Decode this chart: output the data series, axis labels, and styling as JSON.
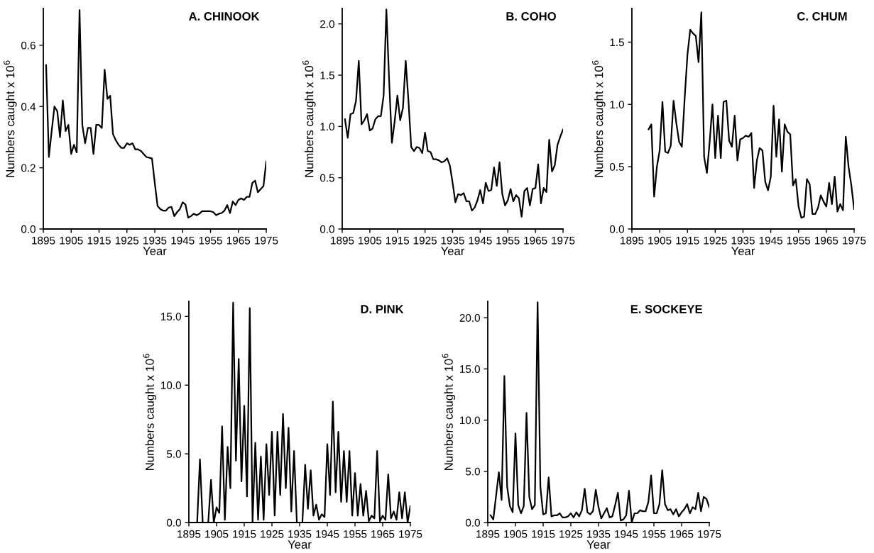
{
  "chart_data": [
    {
      "type": "line",
      "title": "A. CHINOOK",
      "xlabel": "Year",
      "ylabel": "Numbers caught x 10$^{6}$",
      "xlim": [
        1895,
        1975
      ],
      "xticks": [
        1895,
        1905,
        1915,
        1925,
        1935,
        1945,
        1955,
        1965,
        1975
      ],
      "ylim": [
        0,
        0.72
      ],
      "yticks": [
        {
          "value": 0,
          "label": "0.0"
        },
        0.2,
        0.4,
        0.6
      ],
      "grid": false,
      "legend": false,
      "x": [
        1896,
        1897,
        1898,
        1899,
        1900,
        1901,
        1902,
        1903,
        1904,
        1905,
        1906,
        1907,
        1908,
        1909,
        1910,
        1911,
        1912,
        1913,
        1914,
        1915,
        1916,
        1917,
        1918,
        1919,
        1920,
        1921,
        1922,
        1923,
        1924,
        1925,
        1926,
        1927,
        1928,
        1929,
        1930,
        1931,
        1932,
        1933,
        1934,
        1935,
        1936,
        1937,
        1938,
        1939,
        1940,
        1941,
        1942,
        1943,
        1944,
        1945,
        1946,
        1947,
        1948,
        1949,
        1950,
        1951,
        1952,
        1953,
        1954,
        1955,
        1956,
        1957,
        1958,
        1959,
        1960,
        1961,
        1962,
        1963,
        1964,
        1965,
        1966,
        1967,
        1968,
        1969,
        1970,
        1971,
        1972,
        1973,
        1974,
        1975
      ],
      "series": [
        {
          "color": "#000000",
          "values": [
            0.535,
            0.235,
            0.32,
            0.4,
            0.385,
            0.3,
            0.42,
            0.32,
            0.34,
            0.245,
            0.275,
            0.25,
            0.715,
            0.34,
            0.28,
            0.33,
            0.33,
            0.245,
            0.34,
            0.34,
            0.33,
            0.52,
            0.425,
            0.435,
            0.31,
            0.29,
            0.275,
            0.265,
            0.265,
            0.28,
            0.275,
            0.28,
            0.26,
            0.26,
            0.255,
            0.245,
            0.235,
            0.233,
            0.23,
            0.15,
            0.075,
            0.065,
            0.06,
            0.06,
            0.07,
            0.072,
            0.042,
            0.055,
            0.065,
            0.087,
            0.08,
            0.037,
            0.042,
            0.05,
            0.045,
            0.05,
            0.058,
            0.058,
            0.058,
            0.058,
            0.055,
            0.045,
            0.05,
            0.052,
            0.06,
            0.078,
            0.052,
            0.09,
            0.078,
            0.095,
            0.1,
            0.095,
            0.105,
            0.105,
            0.15,
            0.158,
            0.12,
            0.13,
            0.14,
            0.22
          ]
        }
      ]
    },
    {
      "type": "line",
      "title": "B. COHO",
      "xlabel": "Year",
      "ylabel": "Numbers caught x 10$^{6}$",
      "xlim": [
        1895,
        1975
      ],
      "xticks": [
        1895,
        1905,
        1915,
        1925,
        1935,
        1945,
        1955,
        1965,
        1975
      ],
      "ylim": [
        0,
        2.15
      ],
      "yticks": [
        {
          "value": 0,
          "label": "0.0"
        },
        0.5,
        {
          "value": 1,
          "label": "1.0"
        },
        1.5,
        {
          "value": 2,
          "label": "2.0"
        }
      ],
      "grid": false,
      "legend": false,
      "x": [
        1896,
        1897,
        1898,
        1899,
        1900,
        1901,
        1902,
        1903,
        1904,
        1905,
        1906,
        1907,
        1908,
        1909,
        1910,
        1911,
        1912,
        1913,
        1914,
        1915,
        1916,
        1917,
        1918,
        1919,
        1920,
        1921,
        1922,
        1923,
        1924,
        1925,
        1926,
        1927,
        1928,
        1929,
        1930,
        1931,
        1932,
        1933,
        1934,
        1935,
        1936,
        1937,
        1938,
        1939,
        1940,
        1941,
        1942,
        1943,
        1944,
        1945,
        1946,
        1947,
        1948,
        1949,
        1950,
        1951,
        1952,
        1953,
        1954,
        1955,
        1956,
        1957,
        1958,
        1959,
        1960,
        1961,
        1962,
        1963,
        1964,
        1965,
        1966,
        1967,
        1968,
        1969,
        1970,
        1971,
        1972,
        1973,
        1974,
        1975
      ],
      "series": [
        {
          "color": "#000000",
          "values": [
            1.07,
            0.89,
            1.12,
            1.13,
            1.25,
            1.64,
            1.02,
            1.06,
            1.12,
            0.96,
            0.98,
            1.07,
            1.1,
            1.1,
            1.3,
            2.14,
            1.45,
            0.84,
            1.05,
            1.3,
            1.06,
            1.18,
            1.64,
            1.25,
            0.8,
            0.76,
            0.8,
            0.79,
            0.74,
            0.94,
            0.76,
            0.75,
            0.68,
            0.68,
            0.67,
            0.65,
            0.66,
            0.69,
            0.62,
            0.45,
            0.26,
            0.34,
            0.33,
            0.35,
            0.27,
            0.27,
            0.18,
            0.21,
            0.28,
            0.38,
            0.25,
            0.45,
            0.37,
            0.38,
            0.6,
            0.42,
            0.65,
            0.34,
            0.23,
            0.28,
            0.39,
            0.27,
            0.33,
            0.3,
            0.12,
            0.37,
            0.4,
            0.23,
            0.39,
            0.4,
            0.63,
            0.25,
            0.4,
            0.36,
            0.87,
            0.56,
            0.62,
            0.82,
            0.9,
            0.97
          ]
        }
      ]
    },
    {
      "type": "line",
      "title": "C. CHUM",
      "xlabel": "Year",
      "ylabel": "Numbers caught x 10$^{6}$",
      "xlim": [
        1895,
        1975
      ],
      "xticks": [
        1895,
        1905,
        1915,
        1925,
        1935,
        1945,
        1955,
        1965,
        1975
      ],
      "ylim": [
        0,
        1.77
      ],
      "yticks": [
        {
          "value": 0,
          "label": "0.0"
        },
        0.5,
        {
          "value": 1,
          "label": "1.0"
        },
        1.5
      ],
      "grid": false,
      "legend": false,
      "x": [
        1901,
        1902,
        1903,
        1904,
        1905,
        1906,
        1907,
        1908,
        1909,
        1910,
        1911,
        1912,
        1913,
        1914,
        1915,
        1916,
        1917,
        1918,
        1919,
        1920,
        1921,
        1922,
        1923,
        1924,
        1925,
        1926,
        1927,
        1928,
        1929,
        1930,
        1931,
        1932,
        1933,
        1934,
        1935,
        1936,
        1937,
        1938,
        1939,
        1940,
        1941,
        1942,
        1943,
        1944,
        1945,
        1946,
        1947,
        1948,
        1949,
        1950,
        1951,
        1952,
        1953,
        1954,
        1955,
        1956,
        1957,
        1958,
        1959,
        1960,
        1961,
        1962,
        1963,
        1964,
        1965,
        1966,
        1967,
        1968,
        1969,
        1970,
        1971,
        1972,
        1973,
        1974,
        1975
      ],
      "series": [
        {
          "color": "#000000",
          "values": [
            0.8,
            0.84,
            0.26,
            0.5,
            0.63,
            1.02,
            0.62,
            0.61,
            0.67,
            1.03,
            0.85,
            0.7,
            0.66,
            1.05,
            1.4,
            1.6,
            1.57,
            1.55,
            1.34,
            1.74,
            0.58,
            0.45,
            0.7,
            1.0,
            0.57,
            0.91,
            0.57,
            1.02,
            1.03,
            0.71,
            0.66,
            0.91,
            0.55,
            0.72,
            0.73,
            0.75,
            0.74,
            0.77,
            0.33,
            0.55,
            0.65,
            0.63,
            0.38,
            0.31,
            0.42,
            0.99,
            0.58,
            0.88,
            0.46,
            0.84,
            0.78,
            0.76,
            0.35,
            0.4,
            0.18,
            0.09,
            0.1,
            0.4,
            0.36,
            0.12,
            0.12,
            0.17,
            0.27,
            0.22,
            0.18,
            0.37,
            0.2,
            0.42,
            0.14,
            0.2,
            0.15,
            0.74,
            0.5,
            0.35,
            0.16
          ]
        }
      ]
    },
    {
      "type": "line",
      "title": "D. PINK",
      "xlabel": "Year",
      "ylabel": "Numbers caught x 10$^{6}$",
      "xlim": [
        1895,
        1975
      ],
      "xticks": [
        1895,
        1905,
        1915,
        1925,
        1935,
        1945,
        1955,
        1965,
        1975
      ],
      "ylim": [
        0,
        16.1
      ],
      "yticks": [
        {
          "value": 0,
          "label": "0.0"
        },
        {
          "value": 5,
          "label": "5.0"
        },
        {
          "value": 10,
          "label": "10.0"
        },
        {
          "value": 15,
          "label": "15.0"
        }
      ],
      "grid": false,
      "legend": false,
      "x": [
        1898,
        1899,
        1900,
        1901,
        1902,
        1903,
        1904,
        1905,
        1906,
        1907,
        1908,
        1909,
        1910,
        1911,
        1912,
        1913,
        1914,
        1915,
        1916,
        1917,
        1918,
        1919,
        1920,
        1921,
        1922,
        1923,
        1924,
        1925,
        1926,
        1927,
        1928,
        1929,
        1930,
        1931,
        1932,
        1933,
        1934,
        1935,
        1936,
        1937,
        1938,
        1939,
        1940,
        1941,
        1942,
        1943,
        1944,
        1945,
        1946,
        1947,
        1948,
        1949,
        1950,
        1951,
        1952,
        1953,
        1954,
        1955,
        1956,
        1957,
        1958,
        1959,
        1960,
        1961,
        1962,
        1963,
        1964,
        1965,
        1966,
        1967,
        1968,
        1969,
        1970,
        1971,
        1972,
        1973,
        1974,
        1975
      ],
      "series": [
        {
          "color": "#000000",
          "values": [
            0,
            4.6,
            0,
            0,
            0,
            3.1,
            0,
            1.1,
            0.7,
            7.0,
            0.2,
            5.5,
            2.5,
            16.0,
            4.5,
            11.9,
            3.0,
            8.5,
            1.9,
            15.6,
            0,
            5.8,
            0.2,
            4.8,
            0.2,
            5.7,
            2.0,
            6.6,
            0.5,
            6.6,
            2.0,
            7.9,
            2.5,
            6.9,
            0.8,
            5.2,
            0,
            0,
            0,
            4.2,
            1.0,
            3.8,
            0.5,
            1.3,
            0.2,
            0.6,
            0.4,
            5.7,
            2.0,
            8.8,
            2.2,
            6.6,
            1.5,
            5.2,
            1.5,
            5.2,
            0.5,
            3.6,
            0.5,
            2.8,
            0.5,
            2.3,
            0.1,
            0.5,
            0.3,
            5.2,
            0.1,
            0.5,
            0.2,
            3.5,
            0.3,
            0.8,
            0.2,
            2.2,
            0.3,
            2.2,
            0,
            1.2
          ]
        }
      ]
    },
    {
      "type": "line",
      "title": "E. SOCKEYE",
      "xlabel": "Year",
      "ylabel": "Numbers caught x 10$^{6}$",
      "xlim": [
        1895,
        1975
      ],
      "xticks": [
        1895,
        1905,
        1915,
        1925,
        1935,
        1945,
        1955,
        1965,
        1975
      ],
      "ylim": [
        0,
        21.6
      ],
      "yticks": [
        {
          "value": 0,
          "label": "0.0"
        },
        {
          "value": 5,
          "label": "5.0"
        },
        {
          "value": 10,
          "label": "10.0"
        },
        {
          "value": 15,
          "label": "15.0"
        },
        {
          "value": 20,
          "label": "20.0"
        }
      ],
      "grid": false,
      "legend": false,
      "x": [
        1896,
        1897,
        1898,
        1899,
        1900,
        1901,
        1902,
        1903,
        1904,
        1905,
        1906,
        1907,
        1908,
        1909,
        1910,
        1911,
        1912,
        1913,
        1914,
        1915,
        1916,
        1917,
        1918,
        1919,
        1920,
        1921,
        1922,
        1923,
        1924,
        1925,
        1926,
        1927,
        1928,
        1929,
        1930,
        1931,
        1932,
        1933,
        1934,
        1935,
        1936,
        1937,
        1938,
        1939,
        1940,
        1941,
        1942,
        1943,
        1944,
        1945,
        1946,
        1947,
        1948,
        1949,
        1950,
        1951,
        1952,
        1953,
        1954,
        1955,
        1956,
        1957,
        1958,
        1959,
        1960,
        1961,
        1962,
        1963,
        1964,
        1965,
        1966,
        1967,
        1968,
        1969,
        1970,
        1971,
        1972,
        1973,
        1974,
        1975
      ],
      "series": [
        {
          "color": "#000000",
          "values": [
            0.7,
            0.3,
            2.6,
            4.9,
            2.2,
            14.3,
            3.5,
            1.6,
            1.0,
            8.7,
            1.7,
            0.9,
            1.6,
            10.7,
            2.5,
            1.3,
            1.7,
            21.5,
            3.5,
            0.8,
            0.9,
            4.4,
            0.6,
            0.7,
            0.7,
            0.9,
            0.5,
            0.5,
            0.6,
            0.9,
            0.5,
            1.0,
            0.6,
            1.2,
            3.3,
            1.0,
            0.8,
            1.1,
            3.2,
            1.5,
            0.4,
            0.9,
            1.4,
            0.5,
            0.6,
            1.7,
            2.9,
            0.2,
            0.3,
            0.7,
            3.1,
            0,
            0.9,
            0.9,
            1.2,
            1.1,
            1.1,
            2.0,
            4.6,
            0.9,
            0.9,
            1.8,
            5.1,
            1.8,
            1.2,
            1.3,
            0.8,
            1.3,
            0.6,
            1.0,
            1.3,
            1.8,
            0.9,
            1.5,
            1.3,
            2.9,
            1.1,
            2.5,
            2.3,
            1.5
          ]
        }
      ]
    }
  ]
}
